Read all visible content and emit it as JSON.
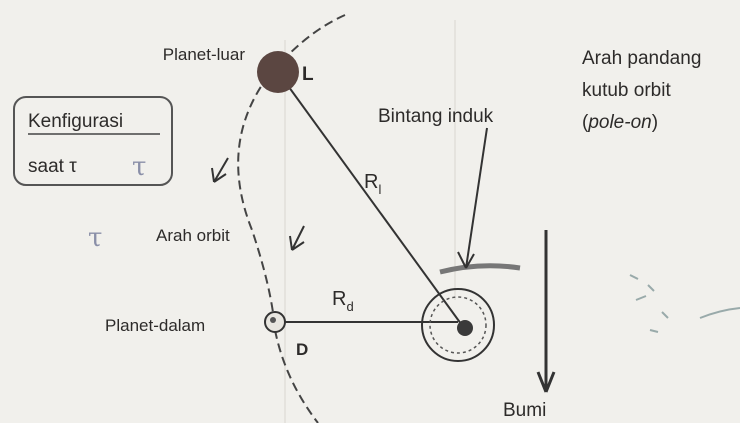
{
  "labels": {
    "planet_luar": "Planet-luar",
    "L": "L",
    "config_line1": "Kenfigurasi",
    "config_line2": "saat τ",
    "config_hand": "τ",
    "bintang_induk": "Bintang induk",
    "arah_pandang": [
      "Arah pandang",
      "kutub orbit",
      "(",
      "pole-on",
      ")"
    ],
    "R_l": {
      "main": "R",
      "sub": "l"
    },
    "R_d": {
      "main": "R",
      "sub": "d"
    },
    "hand_tau": "τ",
    "arah_orbit": "Arah orbit",
    "planet_dalam": "Planet-dalam",
    "D": "D",
    "bumi": "Bumi"
  }
}
